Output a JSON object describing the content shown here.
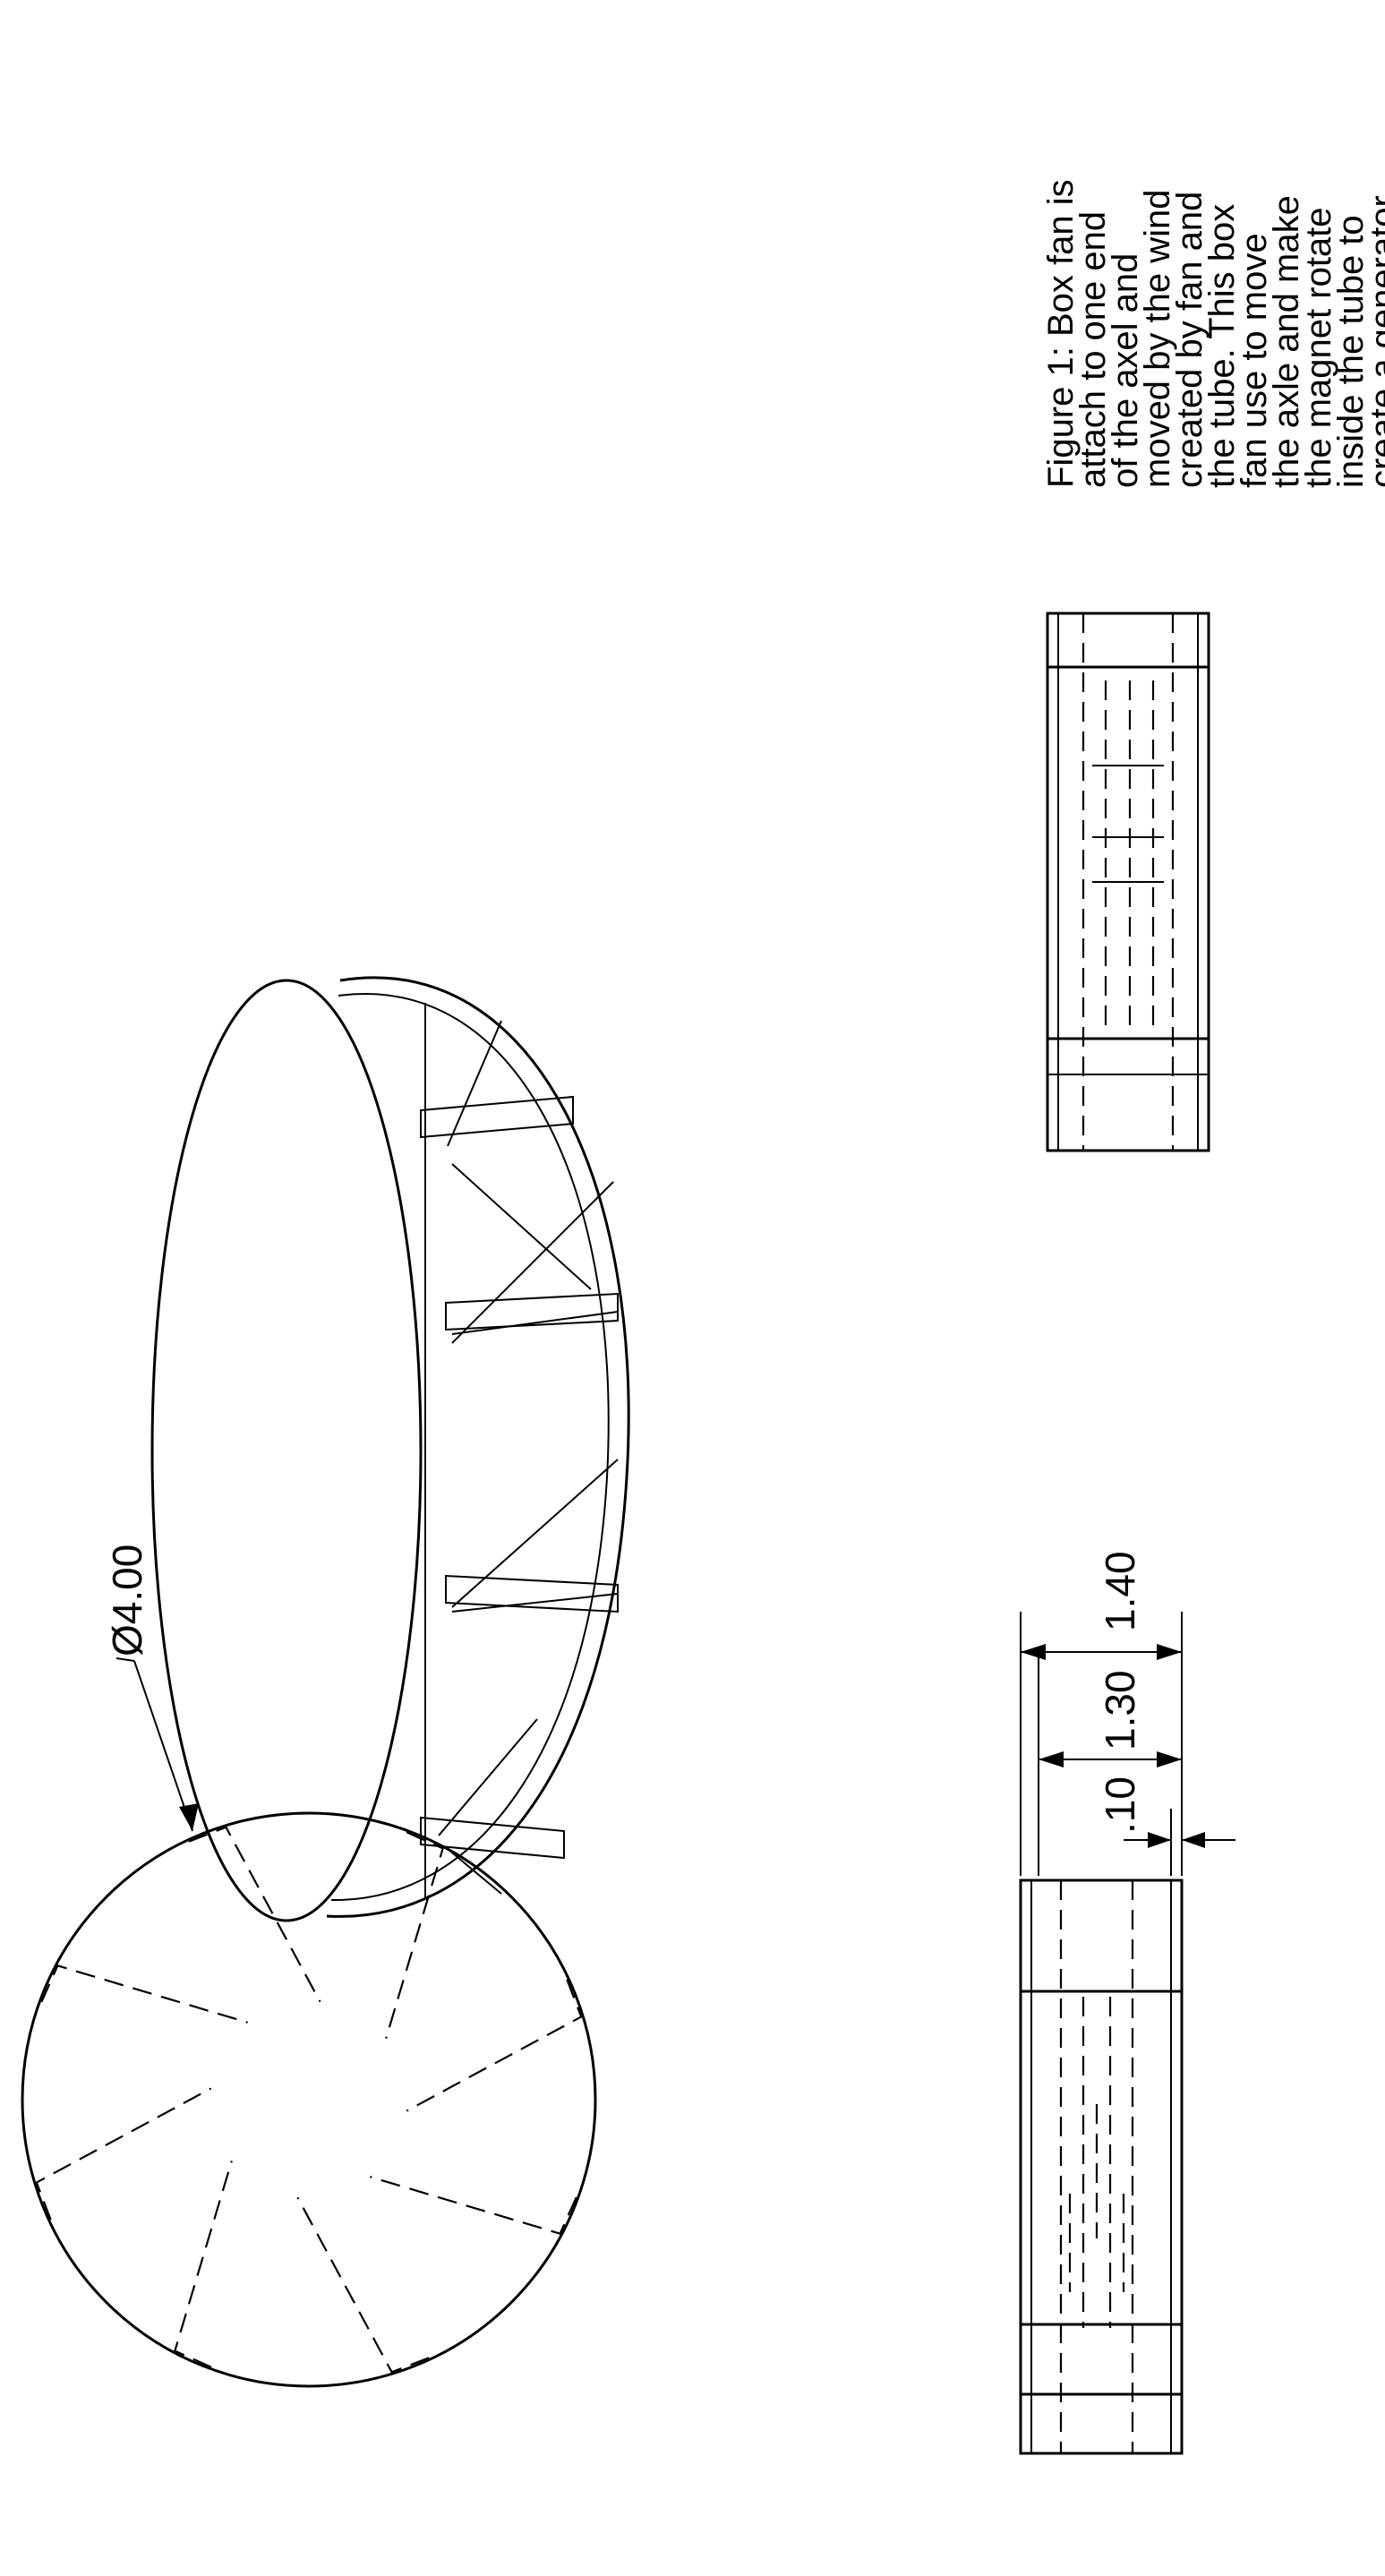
{
  "caption": {
    "lines": [
      "Figure 1: Box fan is",
      "attach to one end",
      "of the axel and",
      "moved by the wind",
      "created by fan and",
      "the tube. This box",
      "fan use to move",
      "the axle and make",
      "the magnet rotate",
      "inside the tube to",
      "create a generator."
    ]
  },
  "dimensions": {
    "diameter": "Ø4.00",
    "length_total": "1.40",
    "length_inner": "1.30",
    "wall": ".10"
  }
}
